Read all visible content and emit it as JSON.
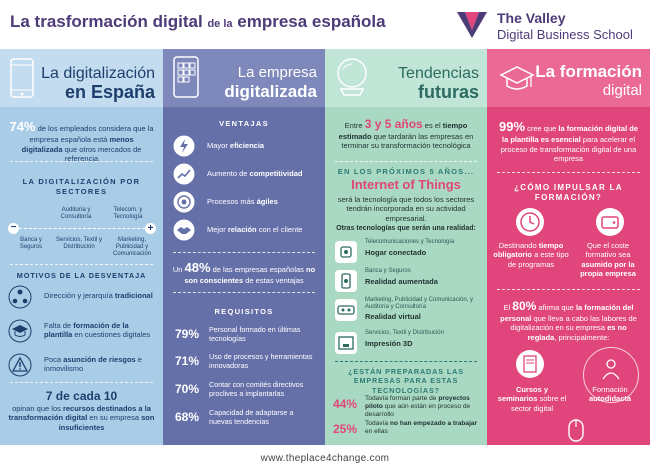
{
  "header": {
    "title_a": "La trasformación digital",
    "title_b": "de la",
    "title_c": "empresa española",
    "logo_line1": "The Valley",
    "logo_line2": "Digital Business School",
    "brand_color": "#4d3b78"
  },
  "col1": {
    "head_a": "La digitalización",
    "head_b": "en España",
    "stat_big": "74%",
    "stat_text_a": "de los empleados considera que la empresa española está",
    "stat_text_b": "menos digitalizada",
    "stat_text_c": "que otros mercados de referencia",
    "sectors_title": "LA DIGITALIZACIÓN POR SECTORES",
    "minus": "−",
    "plus": "+",
    "sector_top": [
      "Auditoría y Consultoría",
      "Telecom. y Tecnología"
    ],
    "sector_bottom": [
      "Banca y Seguros",
      "Servicios, Textil y Distribución",
      "Marketing, Publicidad y Comunicación"
    ],
    "motives_title": "MOTIVOS DE LA DESVENTAJA",
    "motives": [
      {
        "a": "Dirección y jerarquía ",
        "b": "tradicional",
        "c": ""
      },
      {
        "a": "Falta de ",
        "b": "formación de la plantilla",
        "c": " en cuestiones digitales"
      },
      {
        "a": "Poca ",
        "b": "asunción de riesgos",
        "c": " e inmovilismo"
      }
    ],
    "seven": "7 de cada 10",
    "seven_text_a": "opinan que los ",
    "seven_text_b": "recursos destinados a la transformación digital",
    "seven_text_c": " en su empresa ",
    "seven_text_d": "son insuficientes"
  },
  "col2": {
    "head_a": "La empresa",
    "head_b": "digitalizada",
    "adv_title": "VENTAJAS",
    "adv": [
      {
        "a": "Mayor ",
        "b": "eficiencia"
      },
      {
        "a": "Aumento de ",
        "b": "competitividad"
      },
      {
        "a": "Procesos más ",
        "b": "ágiles"
      },
      {
        "a": "Mejor ",
        "b": "relación",
        "c": " con el cliente"
      }
    ],
    "stat_a": "Un ",
    "stat_big": "48%",
    "stat_b": " de las empresas españolas",
    "stat_c": "no son conscientes",
    "stat_d": " de estas ventajas",
    "req_title": "REQUISITOS",
    "req": [
      {
        "pct": "79%",
        "text": "Personal formado en últimas tecnologías"
      },
      {
        "pct": "71%",
        "text": "Uso de procesos y herramientas innovadoras"
      },
      {
        "pct": "70%",
        "text": "Contar con comités directivos proclives a implantarlas"
      },
      {
        "pct": "68%",
        "text": "Capacidad de adaptarse a nuevas tendencias"
      }
    ]
  },
  "col3": {
    "head_a": "Tendencias",
    "head_b": "futuras",
    "intro_a": "Entre ",
    "intro_big": "3 y 5 años",
    "intro_b": " es el ",
    "intro_c": "tiempo estimado",
    "intro_d": " que tardarán las empresas en terminar su transformación tecnológica",
    "next_title": "EN LOS PRÓXIMOS 5 AÑOS...",
    "iot": "Internet of Things",
    "iot_text": "será la tecnología que todos los sectores tendrán incorporada en su actividad empresarial.",
    "other_title": "Otras tecnologías que serán una realidad:",
    "tech": [
      {
        "s": "Telecomunicaciones y Tecnología",
        "b": "Hogar conectado"
      },
      {
        "s": "Banca y Seguros",
        "b": "Realidad aumentada"
      },
      {
        "s": "Marketing, Publicidad y Comunicación, y Auditoría y Consultoría",
        "b": "Realidad virtual"
      },
      {
        "s": "Servicios, Textil y Distribución",
        "b": "Impresión 3D"
      }
    ],
    "ready_title": "¿ESTÁN PREPARADAS LAS EMPRESAS PARA ESTAS TECNOLOGÍAS?",
    "ready": [
      {
        "pct": "44%",
        "a": "Todavía forman parte de ",
        "b": "proyectos piloto",
        "c": " que aún están en proceso de desarrollo"
      },
      {
        "pct": "25%",
        "a": "Todavía ",
        "b": "no han empezado a trabajar",
        "c": " en ellas"
      }
    ]
  },
  "col4": {
    "head_a": "La formación",
    "head_b": "digital",
    "stat_big": "99%",
    "stat_a": " cree que ",
    "stat_b": "la formación digital de la plantilla es esencial",
    "stat_c": " para acelerar el proceso de transformación digital de una empresa",
    "how_title": "¿CÓMO IMPULSAR LA FORMACIÓN?",
    "how_left_a": "Destinando ",
    "how_left_b": "tiempo obligatorio",
    "how_left_c": " a este tipo de programas",
    "how_right_a": "Que el coste formativo sea ",
    "how_right_b": "asumido por la propia empresa",
    "stat2_a": "El ",
    "stat2_big": "80%",
    "stat2_b": " afirma que ",
    "stat2_c": "la formación del personal",
    "stat2_d": " que lleva a cabo las labores de digitalización en su empresa ",
    "stat2_e": "es no reglada",
    "stat2_f": ", principalmente:",
    "opt_left_a": "Cursos y seminarios",
    "opt_left_b": " sobre el sector digital",
    "opt_right_a": "Formación ",
    "opt_right_b": "autodidacta"
  },
  "footer": {
    "url": "www.theplace4change.com"
  },
  "colors": {
    "col1": "#a9cde6",
    "col2": "#6570a9",
    "col3": "#a9d9c3",
    "col4": "#e0467c"
  }
}
